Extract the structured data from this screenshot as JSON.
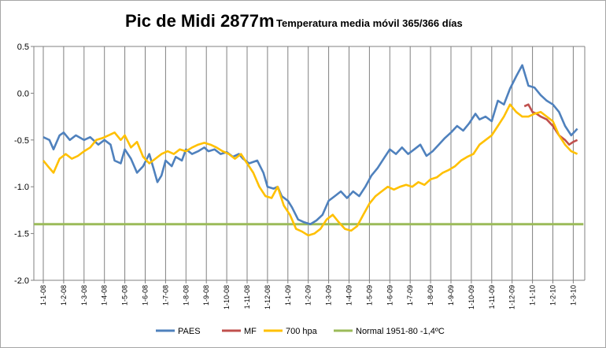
{
  "chart_data": {
    "type": "line",
    "title": "Pic de Midi 2877m",
    "subtitle": "Temperatura media móvil 365/366 días",
    "ylim": [
      -2.0,
      0.5
    ],
    "yticks": [
      "0.5",
      "0.0",
      "-0.5",
      "-1.0",
      "-1.5",
      "-2.0"
    ],
    "grid": "vertical",
    "legend_position": "bottom",
    "categories": [
      "1-1-08",
      "1-2-08",
      "1-3-08",
      "1-4-08",
      "1-5-08",
      "1-6-08",
      "1-7-08",
      "1-8-08",
      "1-9-08",
      "1-10-08",
      "1-11-08",
      "1-12-08",
      "1-1-09",
      "1-2-09",
      "1-3-09",
      "1-4-09",
      "1-5-09",
      "1-6-09",
      "1-7-09",
      "1-8-09",
      "1-9-09",
      "1-10-09",
      "1-11-09",
      "1-12-09",
      "1-1-10",
      "1-2-10",
      "1-3-10"
    ],
    "series": [
      {
        "name": "PAES",
        "color": "#4f81bd",
        "points": [
          [
            0,
            -0.47
          ],
          [
            0.3,
            -0.5
          ],
          [
            0.5,
            -0.6
          ],
          [
            0.8,
            -0.45
          ],
          [
            1.0,
            -0.42
          ],
          [
            1.3,
            -0.5
          ],
          [
            1.6,
            -0.45
          ],
          [
            2.0,
            -0.5
          ],
          [
            2.3,
            -0.47
          ],
          [
            2.7,
            -0.55
          ],
          [
            3.0,
            -0.5
          ],
          [
            3.3,
            -0.55
          ],
          [
            3.5,
            -0.72
          ],
          [
            3.8,
            -0.75
          ],
          [
            4.0,
            -0.6
          ],
          [
            4.3,
            -0.7
          ],
          [
            4.6,
            -0.85
          ],
          [
            4.9,
            -0.78
          ],
          [
            5.2,
            -0.65
          ],
          [
            5.4,
            -0.8
          ],
          [
            5.6,
            -0.95
          ],
          [
            5.8,
            -0.88
          ],
          [
            6.0,
            -0.72
          ],
          [
            6.3,
            -0.78
          ],
          [
            6.5,
            -0.68
          ],
          [
            6.8,
            -0.72
          ],
          [
            7.0,
            -0.6
          ],
          [
            7.3,
            -0.65
          ],
          [
            7.6,
            -0.62
          ],
          [
            7.9,
            -0.58
          ],
          [
            8.1,
            -0.62
          ],
          [
            8.4,
            -0.6
          ],
          [
            8.7,
            -0.65
          ],
          [
            9.0,
            -0.63
          ],
          [
            9.3,
            -0.68
          ],
          [
            9.6,
            -0.65
          ],
          [
            9.8,
            -0.7
          ],
          [
            10.1,
            -0.75
          ],
          [
            10.5,
            -0.72
          ],
          [
            10.8,
            -0.85
          ],
          [
            11.0,
            -1.0
          ],
          [
            11.3,
            -1.02
          ],
          [
            11.5,
            -1.0
          ],
          [
            11.7,
            -1.1
          ],
          [
            12.0,
            -1.15
          ],
          [
            12.2,
            -1.22
          ],
          [
            12.5,
            -1.35
          ],
          [
            12.8,
            -1.38
          ],
          [
            13.1,
            -1.4
          ],
          [
            13.4,
            -1.36
          ],
          [
            13.7,
            -1.3
          ],
          [
            14.0,
            -1.15
          ],
          [
            14.3,
            -1.1
          ],
          [
            14.6,
            -1.05
          ],
          [
            14.9,
            -1.12
          ],
          [
            15.2,
            -1.05
          ],
          [
            15.5,
            -1.1
          ],
          [
            15.8,
            -1.0
          ],
          [
            16.1,
            -0.88
          ],
          [
            16.4,
            -0.8
          ],
          [
            16.7,
            -0.7
          ],
          [
            17.0,
            -0.6
          ],
          [
            17.3,
            -0.65
          ],
          [
            17.6,
            -0.58
          ],
          [
            17.9,
            -0.65
          ],
          [
            18.2,
            -0.6
          ],
          [
            18.5,
            -0.55
          ],
          [
            18.8,
            -0.67
          ],
          [
            19.1,
            -0.62
          ],
          [
            19.4,
            -0.55
          ],
          [
            19.7,
            -0.48
          ],
          [
            20.0,
            -0.42
          ],
          [
            20.3,
            -0.35
          ],
          [
            20.6,
            -0.4
          ],
          [
            20.9,
            -0.32
          ],
          [
            21.2,
            -0.22
          ],
          [
            21.4,
            -0.28
          ],
          [
            21.7,
            -0.25
          ],
          [
            22.0,
            -0.3
          ],
          [
            22.3,
            -0.08
          ],
          [
            22.6,
            -0.12
          ],
          [
            22.9,
            0.05
          ],
          [
            23.2,
            0.18
          ],
          [
            23.5,
            0.3
          ],
          [
            23.8,
            0.08
          ],
          [
            24.1,
            0.06
          ],
          [
            24.4,
            -0.02
          ],
          [
            24.7,
            -0.08
          ],
          [
            25.0,
            -0.12
          ],
          [
            25.3,
            -0.2
          ],
          [
            25.6,
            -0.35
          ],
          [
            25.9,
            -0.45
          ],
          [
            26.2,
            -0.38
          ]
        ]
      },
      {
        "name": "MF",
        "color": "#c0504d",
        "points": [
          [
            23.6,
            -0.14
          ],
          [
            23.8,
            -0.12
          ],
          [
            24.0,
            -0.2
          ],
          [
            24.2,
            -0.22
          ],
          [
            24.4,
            -0.25
          ],
          [
            24.7,
            -0.28
          ],
          [
            25.0,
            -0.35
          ],
          [
            25.3,
            -0.45
          ],
          [
            25.6,
            -0.5
          ],
          [
            25.8,
            -0.55
          ],
          [
            26.0,
            -0.52
          ],
          [
            26.2,
            -0.5
          ]
        ]
      },
      {
        "name": "700 hpa",
        "color": "#ffc000",
        "points": [
          [
            0,
            -0.72
          ],
          [
            0.3,
            -0.8
          ],
          [
            0.5,
            -0.85
          ],
          [
            0.8,
            -0.7
          ],
          [
            1.1,
            -0.65
          ],
          [
            1.4,
            -0.7
          ],
          [
            1.7,
            -0.67
          ],
          [
            2.0,
            -0.62
          ],
          [
            2.3,
            -0.58
          ],
          [
            2.6,
            -0.5
          ],
          [
            2.9,
            -0.48
          ],
          [
            3.2,
            -0.45
          ],
          [
            3.5,
            -0.42
          ],
          [
            3.8,
            -0.5
          ],
          [
            4.0,
            -0.45
          ],
          [
            4.3,
            -0.58
          ],
          [
            4.6,
            -0.52
          ],
          [
            4.9,
            -0.68
          ],
          [
            5.2,
            -0.75
          ],
          [
            5.5,
            -0.7
          ],
          [
            5.8,
            -0.65
          ],
          [
            6.1,
            -0.62
          ],
          [
            6.4,
            -0.65
          ],
          [
            6.7,
            -0.6
          ],
          [
            7.0,
            -0.62
          ],
          [
            7.3,
            -0.58
          ],
          [
            7.6,
            -0.55
          ],
          [
            7.9,
            -0.53
          ],
          [
            8.2,
            -0.55
          ],
          [
            8.5,
            -0.58
          ],
          [
            8.8,
            -0.62
          ],
          [
            9.1,
            -0.65
          ],
          [
            9.4,
            -0.7
          ],
          [
            9.7,
            -0.65
          ],
          [
            10.0,
            -0.75
          ],
          [
            10.3,
            -0.85
          ],
          [
            10.6,
            -1.0
          ],
          [
            10.9,
            -1.1
          ],
          [
            11.2,
            -1.12
          ],
          [
            11.5,
            -1.0
          ],
          [
            11.8,
            -1.2
          ],
          [
            12.1,
            -1.3
          ],
          [
            12.4,
            -1.45
          ],
          [
            12.7,
            -1.48
          ],
          [
            13.0,
            -1.52
          ],
          [
            13.3,
            -1.5
          ],
          [
            13.6,
            -1.45
          ],
          [
            13.9,
            -1.35
          ],
          [
            14.2,
            -1.3
          ],
          [
            14.5,
            -1.38
          ],
          [
            14.8,
            -1.45
          ],
          [
            15.1,
            -1.47
          ],
          [
            15.4,
            -1.42
          ],
          [
            15.7,
            -1.3
          ],
          [
            16.0,
            -1.18
          ],
          [
            16.3,
            -1.1
          ],
          [
            16.6,
            -1.05
          ],
          [
            16.9,
            -1.0
          ],
          [
            17.2,
            -1.03
          ],
          [
            17.5,
            -1.0
          ],
          [
            17.8,
            -0.98
          ],
          [
            18.1,
            -1.0
          ],
          [
            18.4,
            -0.95
          ],
          [
            18.7,
            -0.98
          ],
          [
            19.0,
            -0.92
          ],
          [
            19.3,
            -0.9
          ],
          [
            19.6,
            -0.85
          ],
          [
            19.9,
            -0.82
          ],
          [
            20.2,
            -0.78
          ],
          [
            20.5,
            -0.72
          ],
          [
            20.8,
            -0.68
          ],
          [
            21.1,
            -0.65
          ],
          [
            21.4,
            -0.55
          ],
          [
            21.7,
            -0.5
          ],
          [
            22.0,
            -0.45
          ],
          [
            22.3,
            -0.35
          ],
          [
            22.6,
            -0.25
          ],
          [
            22.9,
            -0.12
          ],
          [
            23.2,
            -0.2
          ],
          [
            23.5,
            -0.25
          ],
          [
            23.8,
            -0.25
          ],
          [
            24.1,
            -0.22
          ],
          [
            24.4,
            -0.2
          ],
          [
            24.7,
            -0.25
          ],
          [
            25.0,
            -0.3
          ],
          [
            25.3,
            -0.45
          ],
          [
            25.6,
            -0.55
          ],
          [
            25.9,
            -0.62
          ],
          [
            26.2,
            -0.65
          ]
        ]
      },
      {
        "name": "Normal 1951-80 -1,4ºC",
        "color": "#9bbb59",
        "points": [
          [
            -0.5,
            -1.4
          ],
          [
            26.5,
            -1.4
          ]
        ]
      }
    ]
  }
}
